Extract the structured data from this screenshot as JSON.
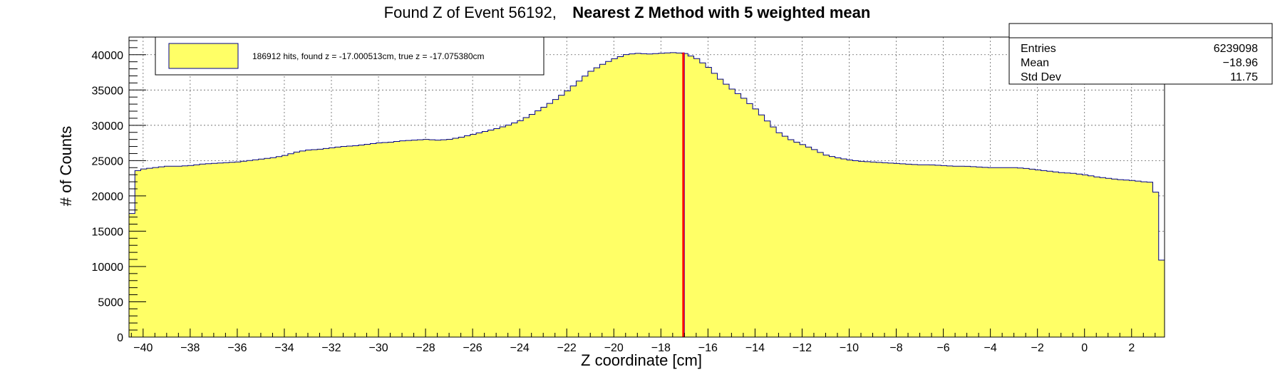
{
  "colors": {
    "fill": "#ffff66",
    "outline": "#00008b",
    "found_line": "#0000ff",
    "true_line": "#ff0000",
    "grid": "#000000",
    "frame": "#000000"
  },
  "title": {
    "part1": "Found Z of Event 56192,",
    "part2": "Nearest Z Method with 5 weighted mean"
  },
  "legend": {
    "entry": "186912 hits, found z = -17.000513cm, true z = -17.075380cm"
  },
  "stats": {
    "rows": [
      {
        "label": "Entries",
        "value": "6239098"
      },
      {
        "label": "Mean",
        "value": "−18.96"
      },
      {
        "label": "Std Dev",
        "value": "11.75"
      }
    ]
  },
  "chart_data": {
    "type": "histogram",
    "xlabel": "Z coordinate [cm]",
    "ylabel": "# of Counts",
    "xlim": [
      -40.6,
      3.4
    ],
    "ylim": [
      0,
      42500
    ],
    "grid": true,
    "legend_position": "top-left",
    "stats_position": "top-right",
    "x_ticks": [
      -40,
      -38,
      -36,
      -34,
      -32,
      -30,
      -28,
      -26,
      -24,
      -22,
      -20,
      -18,
      -16,
      -14,
      -12,
      -10,
      -8,
      -6,
      -4,
      -2,
      0,
      2
    ],
    "x_tick_labels": [
      "−40",
      "−38",
      "−36",
      "−34",
      "−32",
      "−30",
      "−28",
      "−26",
      "−24",
      "−22",
      "−20",
      "−18",
      "−16",
      "−14",
      "−12",
      "−10",
      "−8",
      "−6",
      "−4",
      "−2",
      "0",
      "2"
    ],
    "y_ticks": [
      0,
      5000,
      10000,
      15000,
      20000,
      25000,
      30000,
      35000,
      40000
    ],
    "y_tick_labels": [
      "0",
      "5000",
      "10000",
      "15000",
      "20000",
      "25000",
      "30000",
      "35000",
      "40000"
    ],
    "curve": {
      "x_start": -40.6,
      "x_end": 3.4,
      "x": [
        -40.6,
        -40.35,
        -40.15,
        -40,
        -39.5,
        -39,
        -38.5,
        -38,
        -37.5,
        -37,
        -36.5,
        -36,
        -35.5,
        -35,
        -34.5,
        -34,
        -33.5,
        -33,
        -32.5,
        -32,
        -31.5,
        -31,
        -30.5,
        -30,
        -29.5,
        -29,
        -28.5,
        -28,
        -27.5,
        -27,
        -26.5,
        -26,
        -25.5,
        -25,
        -24.5,
        -24,
        -23.5,
        -23,
        -22.5,
        -22,
        -21.5,
        -21,
        -20.5,
        -20,
        -19.5,
        -19,
        -18.5,
        -18,
        -17.5,
        -17,
        -16.5,
        -16,
        -15.5,
        -15,
        -14.5,
        -14,
        -13.5,
        -13,
        -12.5,
        -12,
        -11.5,
        -11,
        -10.5,
        -10,
        -9.5,
        -9,
        -8.5,
        -8,
        -7.5,
        -7,
        -6.5,
        -6,
        -5.5,
        -5,
        -4.5,
        -4,
        -3.5,
        -3,
        -2.5,
        -2,
        -1.5,
        -1,
        -0.5,
        0,
        0.5,
        1,
        1.5,
        2,
        2.5,
        3,
        3.2,
        3.4
      ],
      "y": [
        11600,
        23400,
        23700,
        23800,
        24000,
        24200,
        24200,
        24300,
        24500,
        24600,
        24700,
        24800,
        25000,
        25200,
        25400,
        25700,
        26200,
        26500,
        26600,
        26800,
        27000,
        27100,
        27300,
        27500,
        27600,
        27800,
        27900,
        28000,
        27900,
        28000,
        28300,
        28700,
        29100,
        29500,
        30000,
        30600,
        31500,
        32500,
        33600,
        34800,
        36200,
        37600,
        38600,
        39400,
        40000,
        40200,
        40100,
        40200,
        40300,
        40200,
        39500,
        38300,
        36600,
        35200,
        33900,
        32400,
        30700,
        29000,
        28000,
        27300,
        26600,
        25800,
        25400,
        25100,
        24900,
        24800,
        24700,
        24600,
        24500,
        24400,
        24400,
        24300,
        24200,
        24200,
        24100,
        24000,
        24000,
        24000,
        23900,
        23700,
        23500,
        23300,
        23200,
        23000,
        22700,
        22500,
        22300,
        22200,
        22000,
        21900,
        10900,
        10900
      ]
    },
    "vertical_lines": [
      {
        "name": "found z",
        "x": -17.000513,
        "color": "#0000ff"
      },
      {
        "name": "true z",
        "x": -17.07538,
        "color": "#ff0000"
      }
    ]
  }
}
